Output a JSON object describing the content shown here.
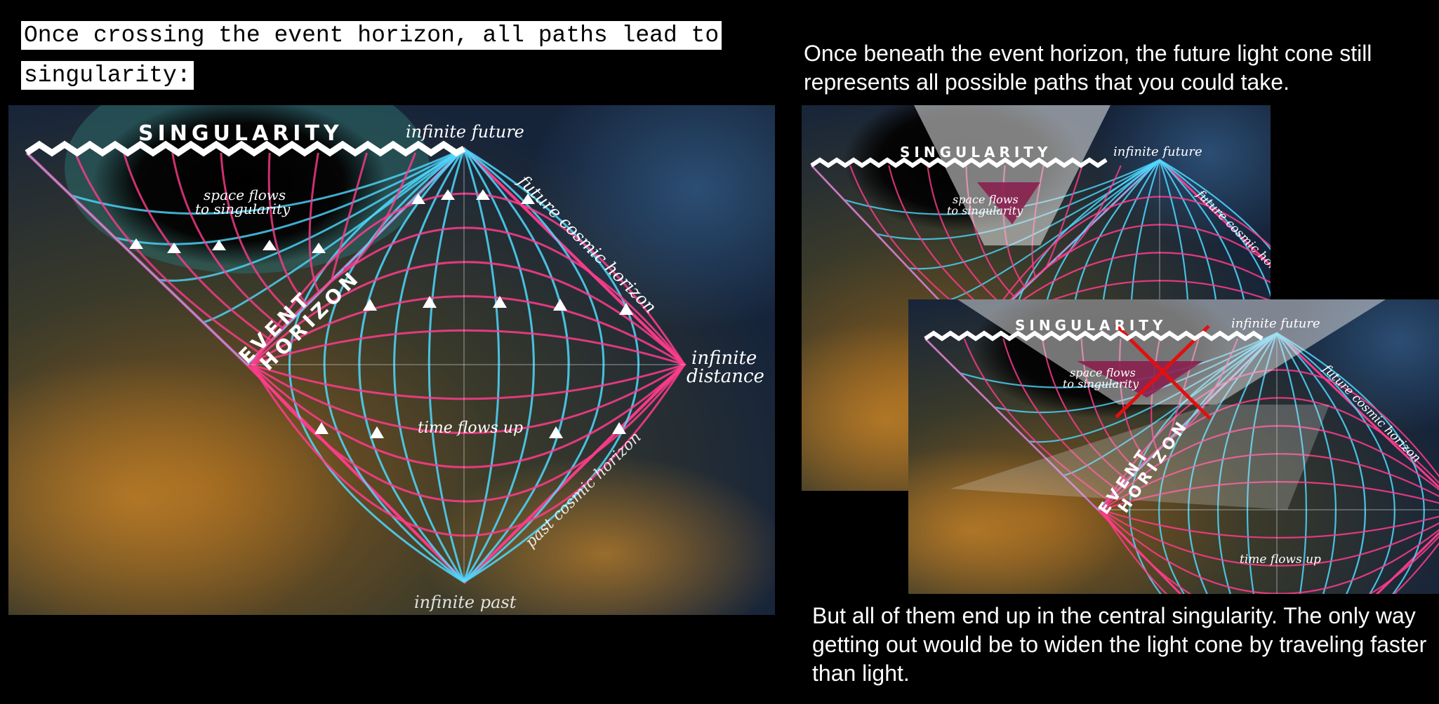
{
  "left_caption": "Once crossing the event horizon, all paths lead to singularity:",
  "right_caption_top": "Once beneath the event horizon, the future light cone still represents all possible paths that you could take.",
  "right_caption_bottom": "But all of them end up in the central singularity. The only way getting out would be to widen the light cone by traveling faster than light.",
  "diagram_labels": {
    "singularity": "SINGULARITY",
    "infinite_future": "infinite future",
    "infinite_past": "infinite past",
    "infinite_distance_1": "infinite",
    "infinite_distance_2": "distance",
    "space_flows_1": "space flows",
    "space_flows_2": "to singularity",
    "time_flows": "time flows up",
    "future_cosmic_horizon": "future cosmic horizon",
    "past_cosmic_horizon": "past cosmic horizon",
    "event": "EVENT",
    "horizon": "HORIZON"
  },
  "colors": {
    "cyan_grid": "#4fd8ff",
    "pink_grid": "#ff3c8c",
    "cross": "#e01010",
    "cone": "#8a2050"
  }
}
